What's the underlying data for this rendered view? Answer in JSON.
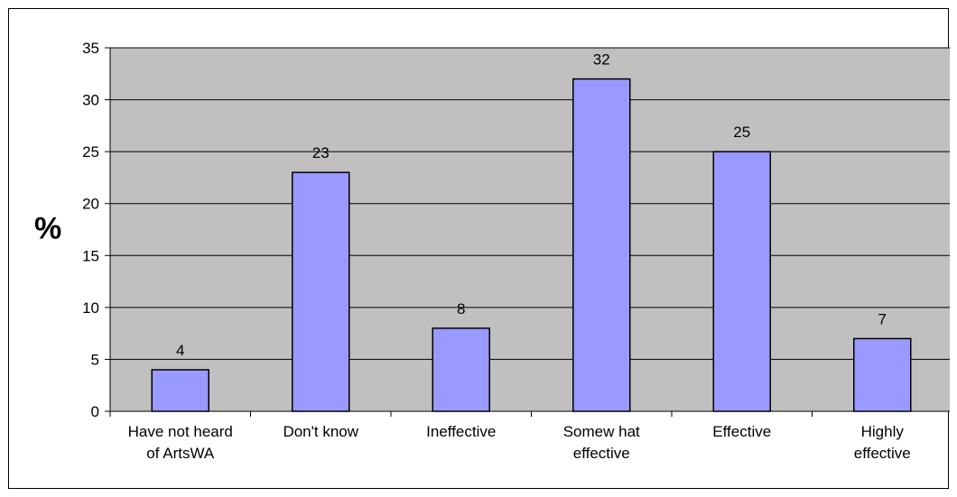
{
  "chart_data": {
    "type": "bar",
    "title": "",
    "xlabel": "",
    "ylabel": "%",
    "categories": [
      [
        "Have not heard",
        "of ArtsWA"
      ],
      [
        "Don't know"
      ],
      [
        "Ineffective"
      ],
      [
        "Somew hat",
        "effective"
      ],
      [
        "Effective"
      ],
      [
        "Highly",
        "effective"
      ]
    ],
    "values": [
      4,
      23,
      8,
      32,
      25,
      7
    ],
    "data_labels": [
      "4",
      "23",
      "8",
      "32",
      "25",
      "7"
    ],
    "ylim": [
      0,
      35
    ],
    "yticks": [
      0,
      5,
      10,
      15,
      20,
      25,
      30,
      35
    ],
    "ytick_labels": [
      "0",
      "5",
      "10",
      "15",
      "20",
      "25",
      "30",
      "35"
    ],
    "grid": true,
    "legend": "none",
    "colors": {
      "plot_background": "#c0c0c0",
      "bar_fill": "#9999ff",
      "bar_stroke": "#000000",
      "gridline": "#000000"
    }
  }
}
